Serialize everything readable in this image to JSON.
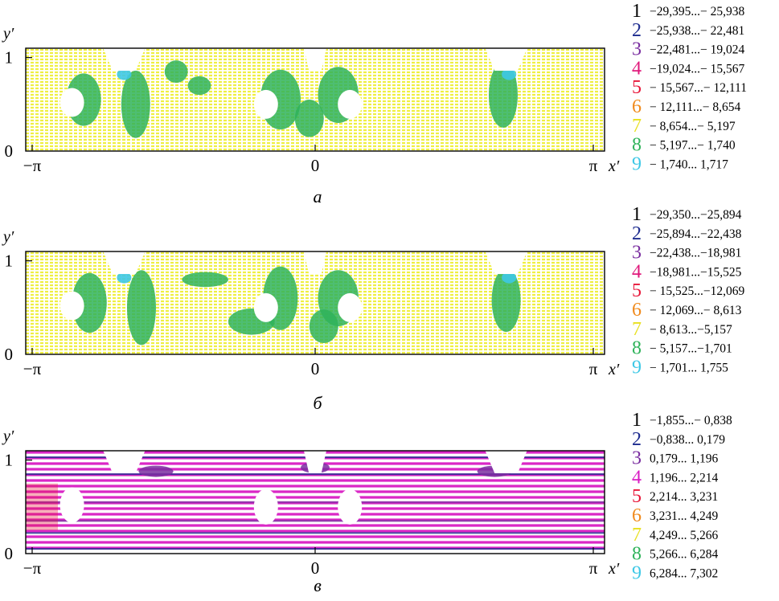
{
  "chart_data": [
    {
      "type": "heatmap",
      "panel_label": "а",
      "xlabel": "x′",
      "ylabel": "y′",
      "x_ticks": [
        "−π",
        "0",
        "π"
      ],
      "y_ticks": [
        "0",
        "1"
      ],
      "xlim": [
        "−π",
        "π"
      ],
      "ylim": [
        0,
        1.1
      ],
      "legend": [
        {
          "n": "1",
          "range": "−29,395...− 25,938",
          "color": "#000000"
        },
        {
          "n": "2",
          "range": "−25,938...− 22,481",
          "color": "#1d2b8f"
        },
        {
          "n": "3",
          "range": "−22,481...− 19,024",
          "color": "#7a2ea0"
        },
        {
          "n": "4",
          "range": "−19,024...− 15,567",
          "color": "#e0197b"
        },
        {
          "n": "5",
          "range": "− 15,567...− 12,111",
          "color": "#e8173a"
        },
        {
          "n": "6",
          "range": "− 12,111...− 8,654",
          "color": "#f08a1c"
        },
        {
          "n": "7",
          "range": "− 8,654...− 5,197",
          "color": "#eded22"
        },
        {
          "n": "8",
          "range": "− 5,197...− 1,740",
          "color": "#2fb35a"
        },
        {
          "n": "9",
          "range": "− 1,740... 1,717",
          "color": "#3ec8e6"
        }
      ],
      "background_level": "7",
      "patch_level": "8",
      "cyan_level": "9"
    },
    {
      "type": "heatmap",
      "panel_label": "б",
      "xlabel": "x′",
      "ylabel": "y′",
      "x_ticks": [
        "−π",
        "0",
        "π"
      ],
      "y_ticks": [
        "0",
        "1"
      ],
      "xlim": [
        "−π",
        "π"
      ],
      "ylim": [
        0,
        1.1
      ],
      "legend": [
        {
          "n": "1",
          "range": "−29,350...−25,894",
          "color": "#000000"
        },
        {
          "n": "2",
          "range": "−25,894...−22,438",
          "color": "#1d2b8f"
        },
        {
          "n": "3",
          "range": "−22,438...−18,981",
          "color": "#7a2ea0"
        },
        {
          "n": "4",
          "range": "−18,981...−15,525",
          "color": "#e0197b"
        },
        {
          "n": "5",
          "range": "− 15,525...−12,069",
          "color": "#e8173a"
        },
        {
          "n": "6",
          "range": "− 12,069...− 8,613",
          "color": "#f08a1c"
        },
        {
          "n": "7",
          "range": "− 8,613...−5,157",
          "color": "#eded22"
        },
        {
          "n": "8",
          "range": "− 5,157...−1,701",
          "color": "#2fb35a"
        },
        {
          "n": "9",
          "range": "− 1,701... 1,755",
          "color": "#3ec8e6"
        }
      ],
      "background_level": "7",
      "patch_level": "8",
      "cyan_level": "9"
    },
    {
      "type": "heatmap",
      "panel_label": "в",
      "xlabel": "x′",
      "ylabel": "y′",
      "x_ticks": [
        "−π",
        "0",
        "π"
      ],
      "y_ticks": [
        "0",
        "1"
      ],
      "xlim": [
        "−π",
        "π"
      ],
      "ylim": [
        0,
        1.1
      ],
      "legend": [
        {
          "n": "1",
          "range": "−1,855...− 0,838",
          "color": "#000000"
        },
        {
          "n": "2",
          "range": "−0,838... 0,179",
          "color": "#1d2b8f"
        },
        {
          "n": "3",
          "range": "0,179... 1,196",
          "color": "#7a2ea0"
        },
        {
          "n": "4",
          "range": "1,196... 2,214",
          "color": "#d91cc4"
        },
        {
          "n": "5",
          "range": "2,214... 3,231",
          "color": "#e8173a"
        },
        {
          "n": "6",
          "range": "3,231... 4,249",
          "color": "#f08a1c"
        },
        {
          "n": "7",
          "range": "4,249... 5,266",
          "color": "#eded22"
        },
        {
          "n": "8",
          "range": "5,266... 6,284",
          "color": "#2fb35a"
        },
        {
          "n": "9",
          "range": "6,284... 7,302",
          "color": "#3ec8e6"
        }
      ],
      "background_level": "4",
      "patch_level": "3",
      "cyan_level": "9"
    }
  ]
}
